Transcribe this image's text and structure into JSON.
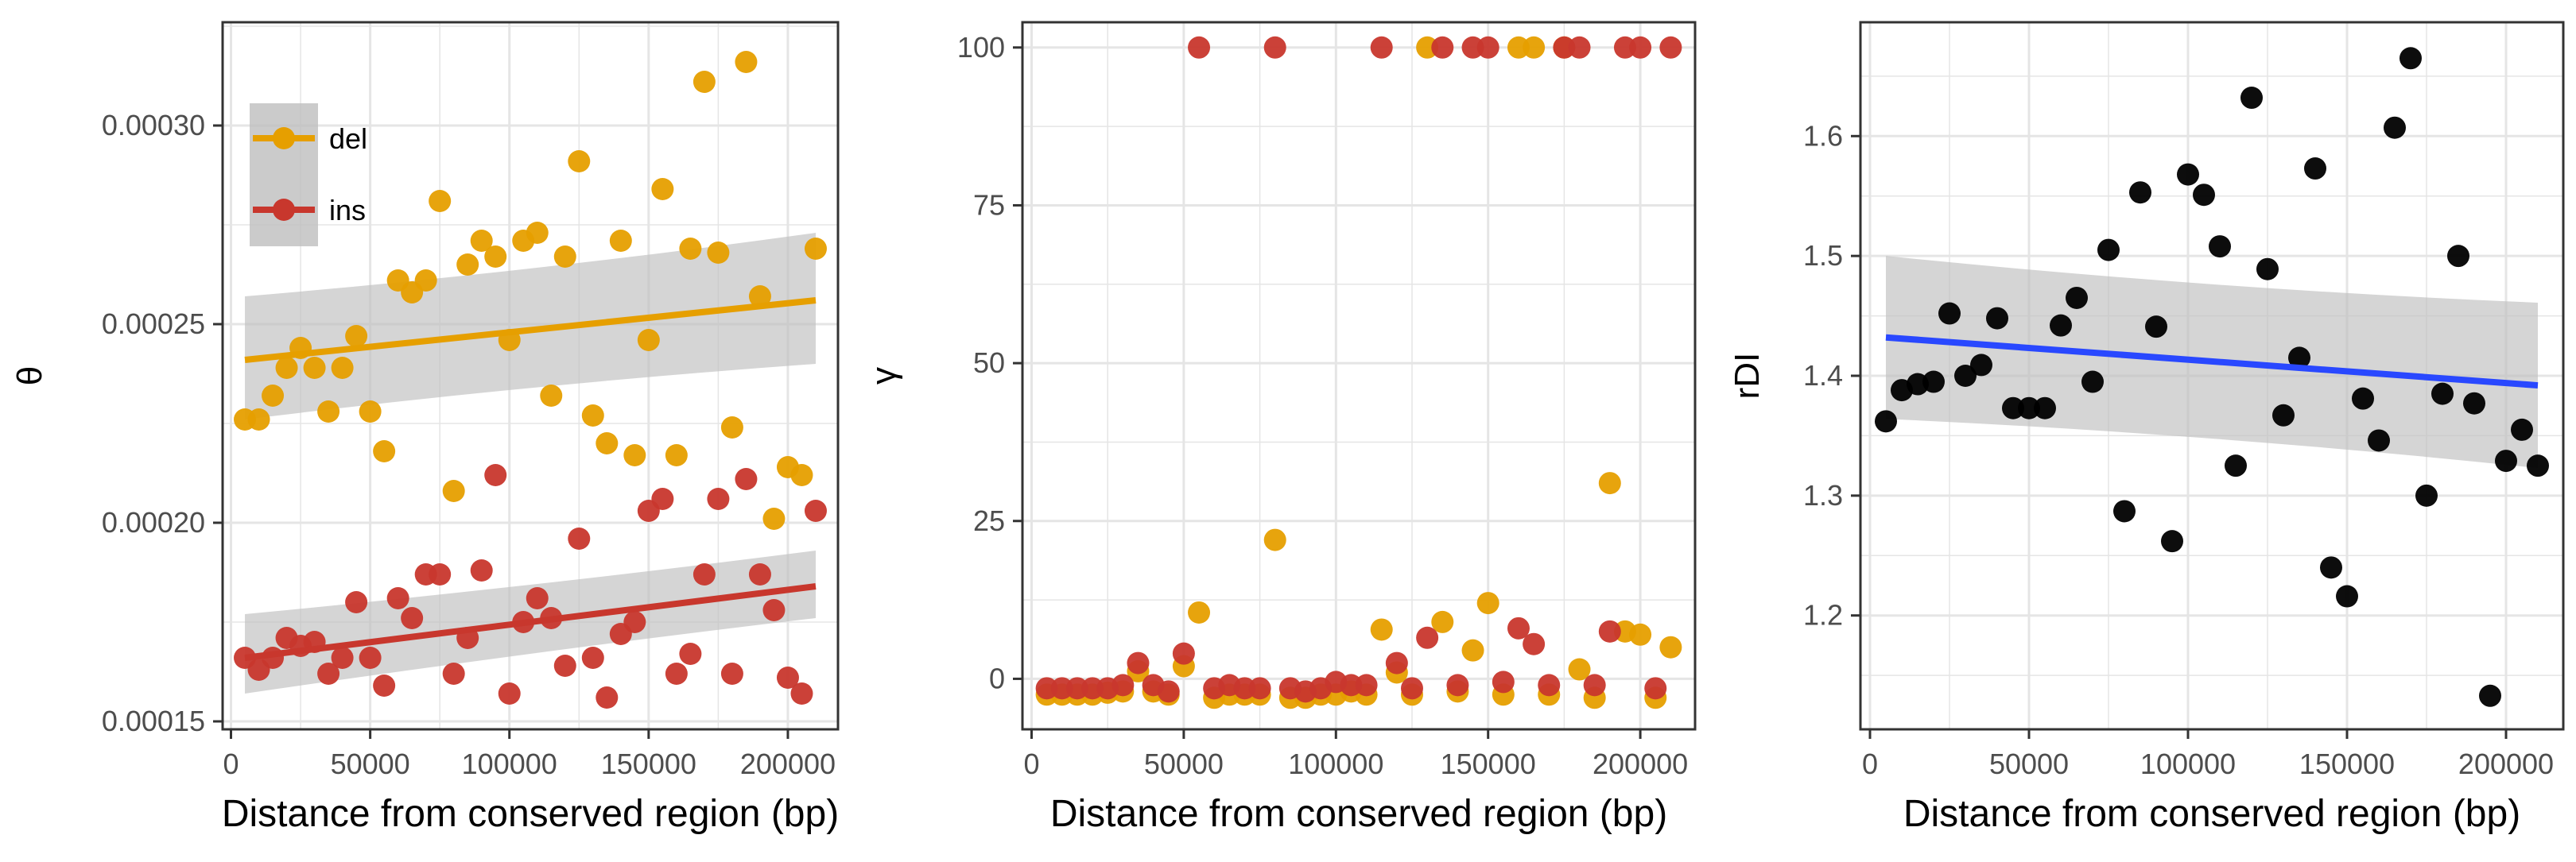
{
  "colors": {
    "del": "#E69F00",
    "ins": "#C8372D",
    "rdi_points": "#000000",
    "rdi_fit": "#2948FF",
    "ribbon": "#BEBEBE",
    "grid": "#E5E5E5",
    "panel_border": "#333333"
  },
  "chart_data": [
    {
      "type": "scatter",
      "xlabel": "Distance from conserved region (bp)",
      "ylabel": "θ",
      "xlim": [
        -3000,
        218000
      ],
      "ylim": [
        0.000148,
        0.000326
      ],
      "xticks": [
        0,
        50000,
        100000,
        150000,
        200000
      ],
      "xtick_labels": [
        "0",
        "50000",
        "100000",
        "150000",
        "200000"
      ],
      "yticks": [
        0.00015,
        0.0002,
        0.00025,
        0.0003
      ],
      "ytick_labels": [
        "0.00015",
        "0.00020",
        "0.00025",
        "0.00030"
      ],
      "grid": true,
      "legend": {
        "position": "top-left",
        "entries": [
          "del",
          "ins"
        ]
      },
      "series": [
        {
          "name": "del",
          "color_key": "del",
          "x": [
            5000,
            10000,
            15000,
            20000,
            25000,
            30000,
            35000,
            40000,
            45000,
            50000,
            55000,
            60000,
            65000,
            70000,
            75000,
            80000,
            85000,
            90000,
            95000,
            100000,
            105000,
            110000,
            115000,
            120000,
            125000,
            130000,
            135000,
            140000,
            145000,
            150000,
            155000,
            160000,
            165000,
            170000,
            175000,
            180000,
            185000,
            190000,
            195000,
            200000,
            205000,
            210000
          ],
          "y": [
            0.000226,
            0.000226,
            0.000232,
            0.000239,
            0.000244,
            0.000239,
            0.000228,
            0.000239,
            0.000247,
            0.000228,
            0.000218,
            0.000261,
            0.000258,
            0.000261,
            0.000281,
            0.000208,
            0.000265,
            0.000271,
            0.000267,
            0.000246,
            0.000271,
            0.000273,
            0.000232,
            0.000267,
            0.000291,
            0.000227,
            0.00022,
            0.000271,
            0.000217,
            0.000246,
            0.000284,
            0.000217,
            0.000269,
            0.000311,
            0.000268,
            0.000224,
            0.000316,
            0.000257,
            0.000201,
            0.000214,
            0.000212,
            0.000269
          ],
          "fit": {
            "x": [
              5000,
              210000
            ],
            "y": [
              0.000241,
              0.000256
            ],
            "ci_lower": [
              0.000226,
              0.00024
            ],
            "ci_upper": [
              0.000257,
              0.000273
            ]
          }
        },
        {
          "name": "ins",
          "color_key": "ins",
          "x": [
            5000,
            10000,
            15000,
            20000,
            25000,
            30000,
            35000,
            40000,
            45000,
            50000,
            55000,
            60000,
            65000,
            70000,
            75000,
            80000,
            85000,
            90000,
            95000,
            100000,
            105000,
            110000,
            115000,
            120000,
            125000,
            130000,
            135000,
            140000,
            145000,
            150000,
            155000,
            160000,
            165000,
            170000,
            175000,
            180000,
            185000,
            190000,
            195000,
            200000,
            205000,
            210000
          ],
          "y": [
            0.000166,
            0.000163,
            0.000166,
            0.000171,
            0.000169,
            0.00017,
            0.000162,
            0.000166,
            0.00018,
            0.000166,
            0.000159,
            0.000181,
            0.000176,
            0.000187,
            0.000187,
            0.000162,
            0.000171,
            0.000188,
            0.000212,
            0.000157,
            0.000175,
            0.000181,
            0.000176,
            0.000164,
            0.000196,
            0.000166,
            0.000156,
            0.000172,
            0.000175,
            0.000203,
            0.000206,
            0.000162,
            0.000167,
            0.000187,
            0.000206,
            0.000162,
            0.000211,
            0.000187,
            0.000178,
            0.000161,
            0.000157,
            0.000203
          ],
          "fit": {
            "x": [
              5000,
              210000
            ],
            "y": [
              0.000166,
              0.000184
            ],
            "ci_lower": [
              0.000157,
              0.000176
            ],
            "ci_upper": [
              0.000177,
              0.000193
            ]
          }
        }
      ]
    },
    {
      "type": "scatter",
      "xlabel": "Distance from conserved region (bp)",
      "ylabel": "γ",
      "xlim": [
        -3000,
        218000
      ],
      "ylim": [
        -8,
        104
      ],
      "xticks": [
        0,
        50000,
        100000,
        150000,
        200000
      ],
      "xtick_labels": [
        "0",
        "50000",
        "100000",
        "150000",
        "200000"
      ],
      "yticks": [
        0,
        25,
        50,
        75,
        100
      ],
      "ytick_labels": [
        "0",
        "25",
        "50",
        "75",
        "100"
      ],
      "grid": true,
      "series": [
        {
          "name": "del",
          "color_key": "del",
          "x": [
            5000,
            10000,
            15000,
            20000,
            25000,
            30000,
            35000,
            40000,
            45000,
            50000,
            55000,
            60000,
            65000,
            70000,
            75000,
            80000,
            85000,
            90000,
            95000,
            100000,
            105000,
            110000,
            115000,
            120000,
            125000,
            130000,
            135000,
            140000,
            145000,
            150000,
            155000,
            160000,
            165000,
            170000,
            175000,
            180000,
            185000,
            190000,
            195000,
            200000,
            205000,
            210000
          ],
          "y": [
            -2.5,
            -2.5,
            -2.5,
            -2.5,
            -2.2,
            -2.0,
            1.2,
            -2.0,
            -2.5,
            2.0,
            10.5,
            -3.0,
            -2.5,
            -2.5,
            -2.5,
            22.0,
            -3.0,
            -3.0,
            -2.5,
            -2.5,
            -2.0,
            -2.5,
            7.8,
            1.0,
            -2.5,
            100,
            9.0,
            -2.0,
            4.5,
            12.0,
            -2.5,
            100,
            100,
            -2.5,
            100,
            1.5,
            -3.0,
            31.0,
            7.5,
            7.0,
            -3.0,
            5.0
          ]
        },
        {
          "name": "ins",
          "color_key": "ins",
          "x": [
            5000,
            10000,
            15000,
            20000,
            25000,
            30000,
            35000,
            40000,
            45000,
            50000,
            55000,
            60000,
            65000,
            70000,
            75000,
            80000,
            85000,
            90000,
            95000,
            100000,
            105000,
            110000,
            115000,
            120000,
            125000,
            130000,
            135000,
            140000,
            145000,
            150000,
            155000,
            160000,
            165000,
            170000,
            175000,
            180000,
            185000,
            190000,
            195000,
            200000,
            205000,
            210000
          ],
          "y": [
            -1.5,
            -1.5,
            -1.5,
            -1.5,
            -1.5,
            -1.0,
            2.5,
            -1.0,
            -2.0,
            4.0,
            100,
            -1.5,
            -1.0,
            -1.5,
            -1.5,
            100,
            -1.5,
            -2.0,
            -1.5,
            -0.5,
            -1.0,
            -1.0,
            100,
            2.5,
            -1.5,
            6.5,
            100,
            -1.0,
            100,
            100,
            -0.5,
            8.0,
            5.5,
            -1.0,
            100,
            100,
            -1.0,
            7.5,
            100,
            100,
            -1.5,
            100
          ]
        }
      ]
    },
    {
      "type": "scatter",
      "xlabel": "Distance from conserved region (bp)",
      "ylabel": "rDI",
      "xlim": [
        -3000,
        218000
      ],
      "ylim": [
        1.105,
        1.695
      ],
      "xticks": [
        0,
        50000,
        100000,
        150000,
        200000
      ],
      "xtick_labels": [
        "0",
        "50000",
        "100000",
        "150000",
        "200000"
      ],
      "yticks": [
        1.2,
        1.3,
        1.4,
        1.5,
        1.6
      ],
      "ytick_labels": [
        "1.2",
        "1.3",
        "1.4",
        "1.5",
        "1.6"
      ],
      "grid": true,
      "series": [
        {
          "name": "rDI",
          "color_key": "rdi_points",
          "x": [
            5000,
            10000,
            15000,
            20000,
            25000,
            30000,
            35000,
            40000,
            45000,
            50000,
            55000,
            60000,
            65000,
            70000,
            75000,
            80000,
            85000,
            90000,
            95000,
            100000,
            105000,
            110000,
            115000,
            120000,
            125000,
            130000,
            135000,
            140000,
            145000,
            150000,
            155000,
            160000,
            165000,
            170000,
            175000,
            180000,
            185000,
            190000,
            195000,
            200000,
            205000,
            210000
          ],
          "y": [
            1.362,
            1.388,
            1.393,
            1.395,
            1.452,
            1.4,
            1.409,
            1.448,
            1.373,
            1.373,
            1.373,
            1.442,
            1.465,
            1.395,
            1.505,
            1.287,
            1.553,
            1.441,
            1.262,
            1.568,
            1.551,
            1.508,
            1.325,
            1.632,
            1.489,
            1.367,
            1.415,
            1.573,
            1.24,
            1.216,
            1.381,
            1.346,
            1.607,
            1.665,
            1.3,
            1.385,
            1.5,
            1.377,
            1.133,
            1.329,
            1.355,
            1.325
          ],
          "fit": {
            "x": [
              5000,
              210000
            ],
            "y": [
              1.432,
              1.392
            ],
            "ci_lower": [
              1.364,
              1.323
            ],
            "ci_upper": [
              1.5,
              1.461
            ]
          }
        }
      ]
    }
  ]
}
